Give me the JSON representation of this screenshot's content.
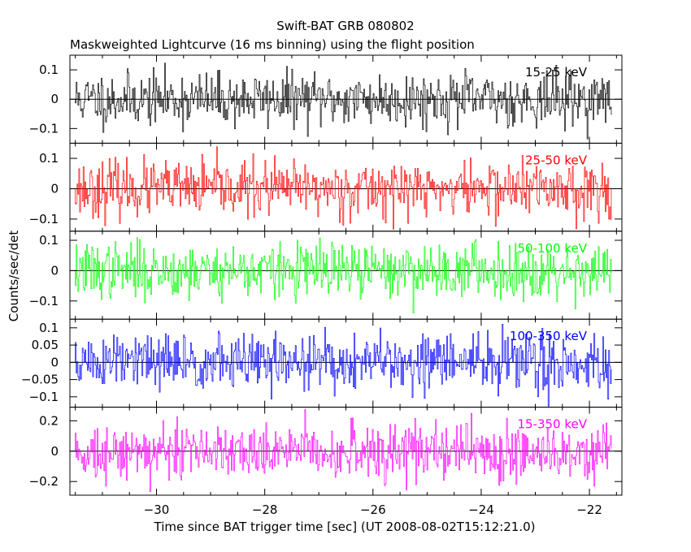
{
  "chart_data": {
    "type": "line",
    "title": "Swift-BAT GRB 080802",
    "subtitle": "Maskweighted Lightcurve (16 ms binning) using the flight position",
    "xlabel": "Time since BAT trigger time [sec] (UT 2008-08-02T15:12:21.0)",
    "ylabel": "Counts/sec/det",
    "xlim": [
      -31.6,
      -21.4
    ],
    "x_data_range": [
      -31.5,
      -21.6
    ],
    "bin_width": 0.016,
    "x_ticks": [
      -30,
      -28,
      -26,
      -24,
      -22
    ],
    "x_tick_labels": [
      "−30",
      "−28",
      "−26",
      "−24",
      "−22"
    ],
    "grid": false,
    "panels": [
      {
        "name": "15-25 keV",
        "color": "#000000",
        "ylim": [
          -0.15,
          0.15
        ],
        "y_ticks": [
          0.1,
          0,
          -0.1
        ],
        "y_tick_labels": [
          "0.1",
          "0",
          "−0.1"
        ],
        "noise_sigma": 0.045,
        "seed": 11
      },
      {
        "name": "25-50 keV",
        "color": "#ff0000",
        "ylim": [
          -0.14,
          0.15
        ],
        "y_ticks": [
          0.1,
          0,
          -0.1
        ],
        "y_tick_labels": [
          "0.1",
          "0",
          "−0.1"
        ],
        "noise_sigma": 0.045,
        "seed": 23
      },
      {
        "name": "50-100 keV",
        "color": "#00ff00",
        "ylim": [
          -0.16,
          0.13
        ],
        "y_ticks": [
          0.1,
          0,
          -0.1
        ],
        "y_tick_labels": [
          "0.1",
          "0",
          "−0.1"
        ],
        "noise_sigma": 0.045,
        "seed": 37
      },
      {
        "name": "100-350 keV",
        "color": "#0000ff",
        "ylim": [
          -0.13,
          0.125
        ],
        "y_ticks": [
          0.1,
          0.05,
          0,
          -0.05,
          -0.1
        ],
        "y_tick_labels": [
          "0.1",
          "0.05",
          "0",
          "−0.05",
          "−0.1"
        ],
        "noise_sigma": 0.042,
        "seed": 51
      },
      {
        "name": "15-350 keV",
        "color": "#ff00ff",
        "ylim": [
          -0.29,
          0.29
        ],
        "y_ticks": [
          0.2,
          0,
          -0.2
        ],
        "y_tick_labels": [
          "0.2",
          "0",
          "−0.2"
        ],
        "noise_sigma": 0.09,
        "seed": 73
      }
    ]
  }
}
